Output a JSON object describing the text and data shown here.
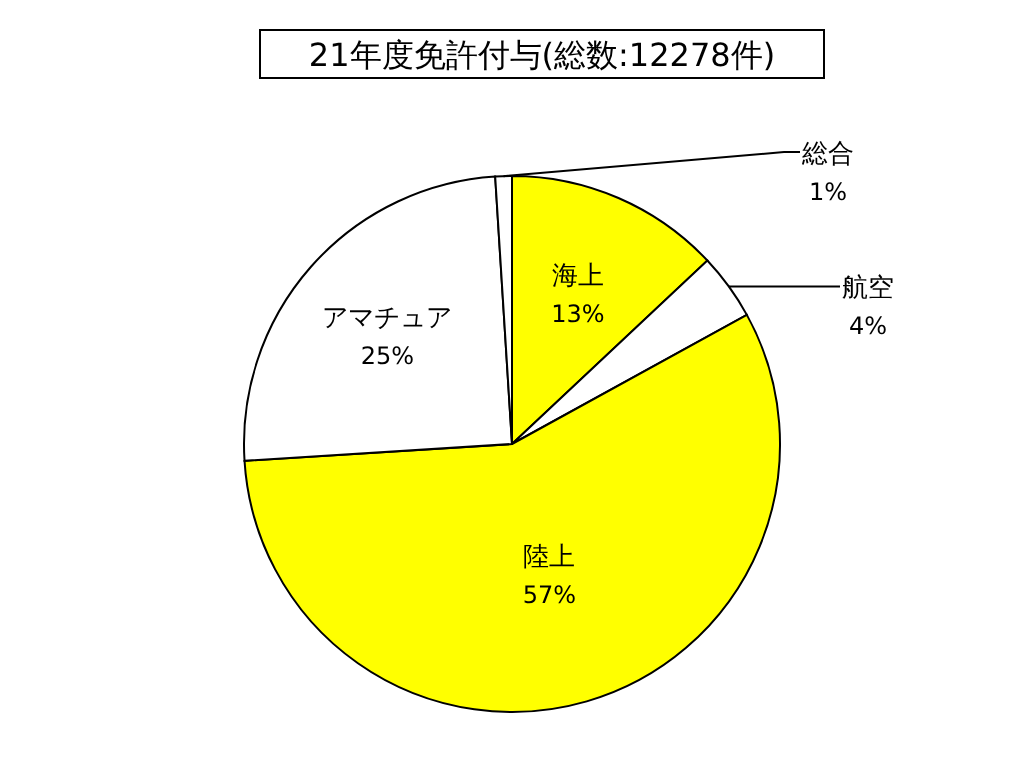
{
  "chart_data": {
    "type": "pie",
    "title": "21年度免許付与(総数:12278件)",
    "categories": [
      "海上",
      "航空",
      "陸上",
      "アマチュア",
      "総合"
    ],
    "values": [
      13,
      4,
      57,
      25,
      1
    ],
    "value_labels": [
      "13%",
      "4%",
      "57%",
      "25%",
      "1%"
    ],
    "colors": [
      "#ffff00",
      "#ffffff",
      "#ffff00",
      "#ffffff",
      "#ffffff"
    ],
    "legend": false
  }
}
